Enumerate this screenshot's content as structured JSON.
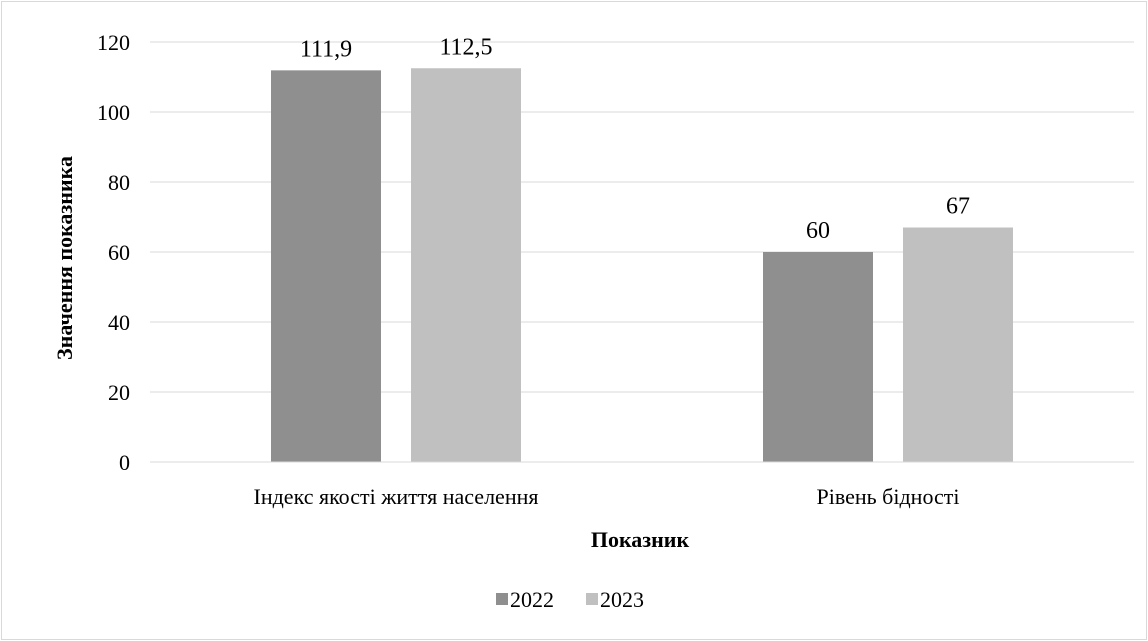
{
  "chart_data": {
    "type": "bar",
    "categories": [
      "Індекс якості життя населення",
      "Рівень бідності"
    ],
    "series": [
      {
        "name": "2022",
        "values": [
          111.9,
          60
        ],
        "labels": [
          "111,9",
          "60"
        ],
        "color": "#8f8f8f"
      },
      {
        "name": "2023",
        "values": [
          112.5,
          67
        ],
        "labels": [
          "112,5",
          "67"
        ],
        "color": "#c0c0c0"
      }
    ],
    "title": "",
    "xlabel": "Показник",
    "ylabel": "Значення показника",
    "ylim": [
      0,
      120
    ],
    "yticks": [
      0,
      20,
      40,
      60,
      80,
      100,
      120
    ],
    "grid": true,
    "gridColor": "#d9d9d9",
    "legend": "bottom"
  }
}
